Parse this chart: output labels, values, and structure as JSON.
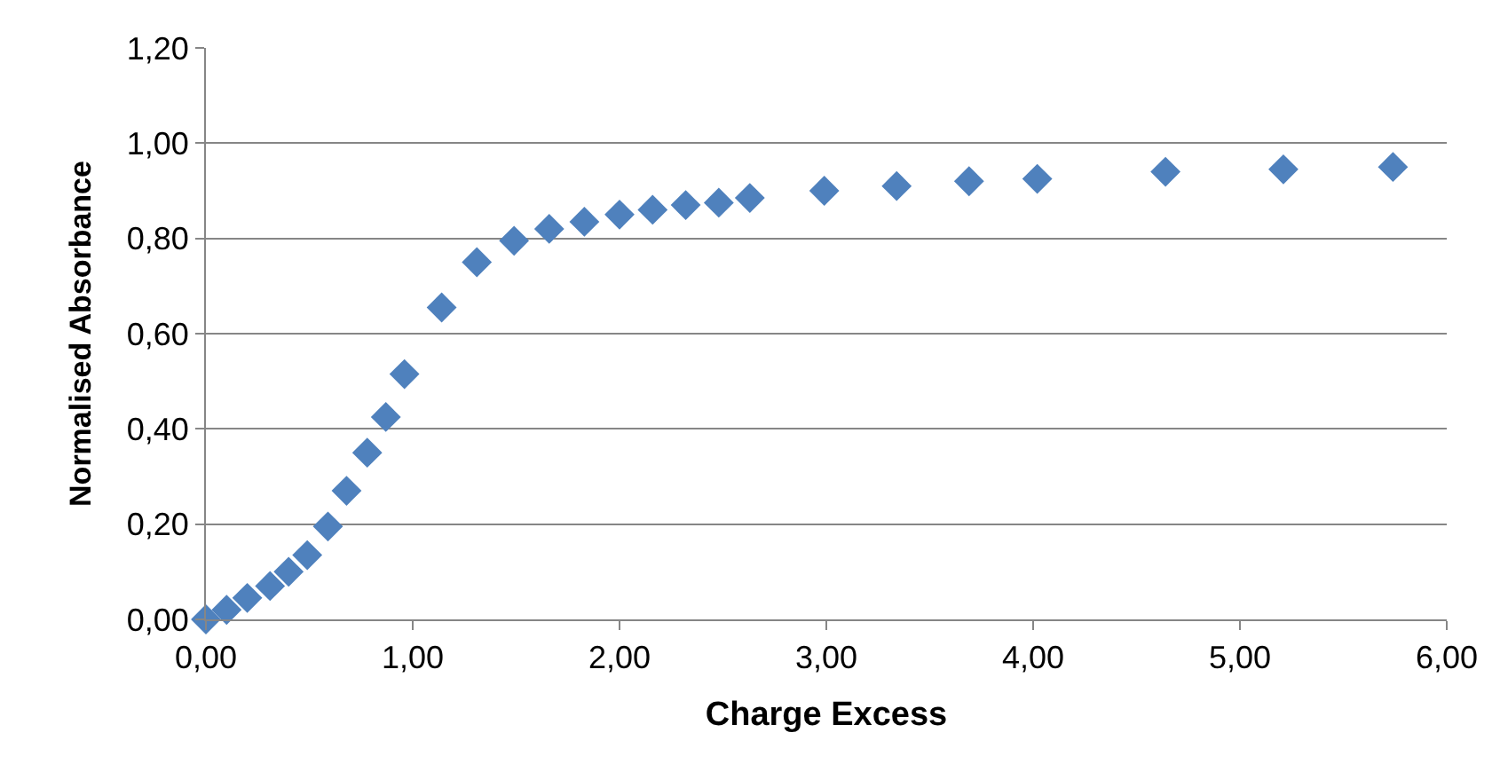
{
  "chart_data": {
    "type": "scatter",
    "xlabel": "Charge Excess",
    "ylabel": "Normalised Absorbance",
    "x": [
      0.0,
      0.1,
      0.2,
      0.31,
      0.4,
      0.49,
      0.59,
      0.68,
      0.78,
      0.87,
      0.96,
      1.14,
      1.31,
      1.49,
      1.66,
      1.83,
      2.0,
      2.16,
      2.32,
      2.48,
      2.63,
      2.99,
      3.34,
      3.69,
      4.02,
      4.64,
      5.21,
      5.74
    ],
    "series": [
      {
        "color": "#4f81bd",
        "values": [
          0.0,
          0.02,
          0.045,
          0.07,
          0.1,
          0.135,
          0.195,
          0.27,
          0.35,
          0.425,
          0.515,
          0.655,
          0.75,
          0.795,
          0.82,
          0.835,
          0.85,
          0.86,
          0.87,
          0.875,
          0.885,
          0.9,
          0.91,
          0.92,
          0.925,
          0.94,
          0.945,
          0.95
        ]
      }
    ],
    "xlim": [
      0,
      6
    ],
    "ylim": [
      0,
      1.2
    ],
    "xticks": [
      {
        "value": 0,
        "label": "0,00"
      },
      {
        "value": 1,
        "label": "1,00"
      },
      {
        "value": 2,
        "label": "2,00"
      },
      {
        "value": 3,
        "label": "3,00"
      },
      {
        "value": 4,
        "label": "4,00"
      },
      {
        "value": 5,
        "label": "5,00"
      },
      {
        "value": 6,
        "label": "6,00"
      }
    ],
    "yticks": [
      {
        "value": 0,
        "label": "0,00"
      },
      {
        "value": 0.2,
        "label": "0,20"
      },
      {
        "value": 0.4,
        "label": "0,40"
      },
      {
        "value": 0.6,
        "label": "0,60"
      },
      {
        "value": 0.8,
        "label": "0,80"
      },
      {
        "value": 1.0,
        "label": "1,00"
      },
      {
        "value": 1.2,
        "label": "1,20"
      }
    ],
    "grid": "y",
    "legend": false,
    "marker": "diamond"
  }
}
